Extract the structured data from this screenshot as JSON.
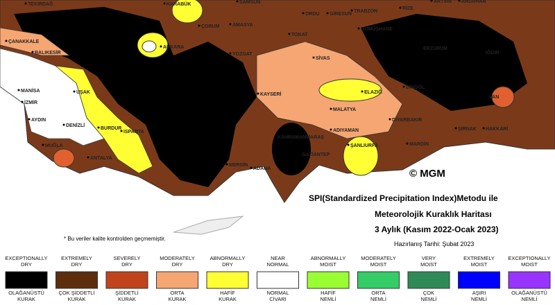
{
  "title_lines": [
    "SPI(Standardized Precipitation Index)Metodu ile",
    "Meteorolojik Kuraklık Haritası",
    "3 Aylık (Kasım 2022-Ocak 2023)"
  ],
  "subtitle": "Hazırlanış Tarihi: Şubat 2023",
  "copyright": "© MGM",
  "note": "* Bu veriler kalite kontrolden geçmemiştir.",
  "cities": [
    "TEKİRDAĞ",
    "KARABÜK",
    "SAMSUN",
    "ORDU",
    "GİRESUN",
    "TRABZON",
    "RİZE",
    "ARTVİN",
    "ARDAHAN",
    "ÇANAKKALE",
    "BALIKESİR",
    "ÇORUM",
    "AMASYA",
    "TOKAT",
    "GÜMÜŞHANE",
    "ERZURUM",
    "IĞDIR",
    "ANKARA",
    "YOZGAT",
    "SİVAS",
    "MANİSA",
    "İZMİR",
    "UŞAK",
    "KAYSERİ",
    "BİNGÖL",
    "ELAZIĞ",
    "VAN",
    "AYDIN",
    "DENİZLİ",
    "BURDUR",
    "ISPARTA",
    "MALATYA",
    "DİYARBAKIR",
    "ŞIRNAK",
    "HAKKARİ",
    "MUĞLA",
    "ANTALYA",
    "KAHRAMANMARAŞ",
    "ADIYAMAN",
    "ŞANLIURFA",
    "MARDİN",
    "MERSİN",
    "ADANA",
    "GAZİANTEP"
  ],
  "legend": [
    {
      "top": [
        "EXCEPTIONALLY",
        "DRY"
      ],
      "bottom": [
        "OLAĞANÜSTÜ",
        "KURAK"
      ],
      "color": "#000000"
    },
    {
      "top": [
        "EXTREMELY",
        "DRY"
      ],
      "bottom": [
        "ÇOK ŞİDDETLİ",
        "KURAK"
      ],
      "color": "#5c2e0e"
    },
    {
      "top": [
        "SEVERELY",
        "DRY"
      ],
      "bottom": [
        "ŞİDDETLİ",
        "KURAK"
      ],
      "color": "#c0431c"
    },
    {
      "top": [
        "MODERATELY",
        "DRY"
      ],
      "bottom": [
        "ORTA",
        "KURAK"
      ],
      "color": "#f5a673"
    },
    {
      "top": [
        "ABNORMALLY",
        "DRY"
      ],
      "bottom": [
        "HAFİF",
        "KURAK"
      ],
      "color": "#ffff33"
    },
    {
      "top": [
        "NEAR",
        "NORMAL"
      ],
      "bottom": [
        "NORMAL",
        "CİVARI"
      ],
      "color": "#ffffff"
    },
    {
      "top": [
        "ABNORMALLY",
        "MOIST"
      ],
      "bottom": [
        "HAFİF",
        "NEMLİ"
      ],
      "color": "#99ff33"
    },
    {
      "top": [
        "MODERATELY",
        "MOIST"
      ],
      "bottom": [
        "ORTA",
        "NEMLİ"
      ],
      "color": "#33cc66"
    },
    {
      "top": [
        "VERY",
        "MOIST"
      ],
      "bottom": [
        "ÇOK",
        "NEMLİ"
      ],
      "color": "#2e8b57"
    },
    {
      "top": [
        "EXTREMELY",
        "MOIST"
      ],
      "bottom": [
        "AŞIRI",
        "NEMLİ"
      ],
      "color": "#0000ff"
    },
    {
      "top": [
        "EXCEPTIONALLY",
        "MOIST"
      ],
      "bottom": [
        "OLAĞANÜSTÜ",
        "NEMLİ"
      ],
      "color": "#9933ff"
    }
  ]
}
